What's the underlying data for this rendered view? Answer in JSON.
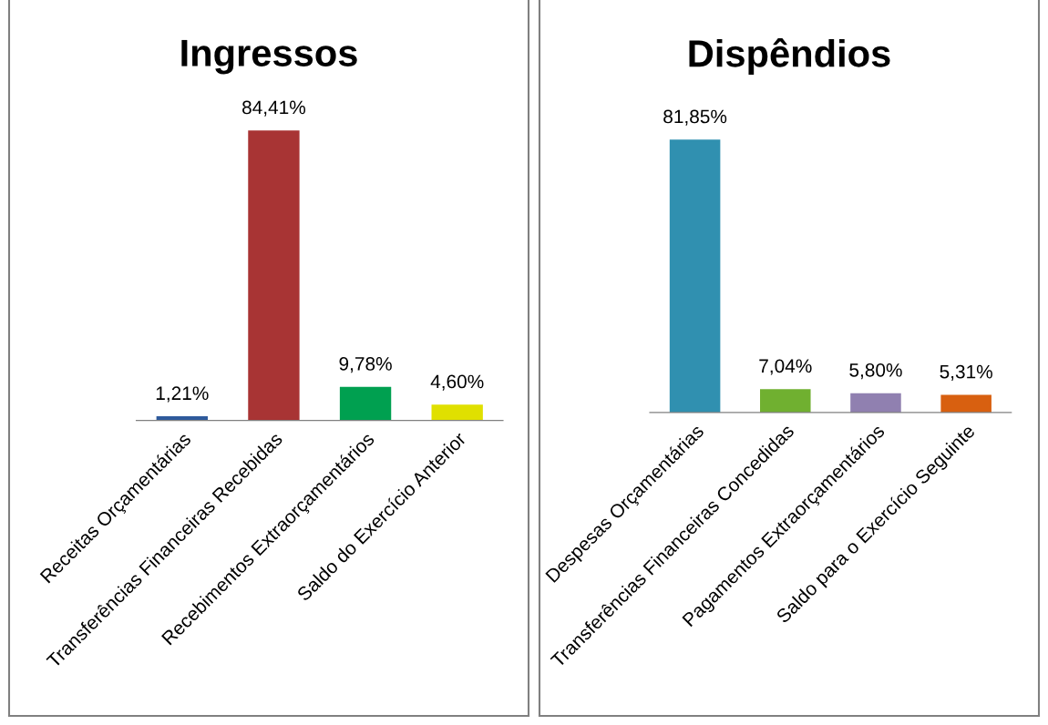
{
  "chart_data": [
    {
      "type": "bar",
      "title": "Ingressos",
      "categories": [
        "Receitas Orçamentárias",
        "Transferências Financeiras Recebidas",
        "Recebimentos Extraorçamentários",
        "Saldo do Exercício Anterior"
      ],
      "values": [
        1.21,
        84.41,
        9.78,
        4.6
      ],
      "value_labels": [
        "1,21%",
        "84,41%",
        "9,78%",
        "4,60%"
      ],
      "colors": [
        "#2e5a9c",
        "#a83434",
        "#00a050",
        "#e0e000"
      ],
      "tick_labels": "x",
      "grid": false,
      "legend": false
    },
    {
      "type": "bar",
      "title": "Dispêndios",
      "categories": [
        "Despesas Orçamentárias",
        "Transferências Financeiras Concedidas",
        "Pagamentos Extraorçamentários",
        "Saldo para o Exercício Seguinte"
      ],
      "values": [
        81.85,
        7.04,
        5.8,
        5.31
      ],
      "value_labels": [
        "81,85%",
        "7,04%",
        "5,80%",
        "5,31%"
      ],
      "colors": [
        "#3090b0",
        "#70b030",
        "#9080b0",
        "#d86010"
      ],
      "tick_labels": "x",
      "grid": false,
      "legend": false
    }
  ]
}
